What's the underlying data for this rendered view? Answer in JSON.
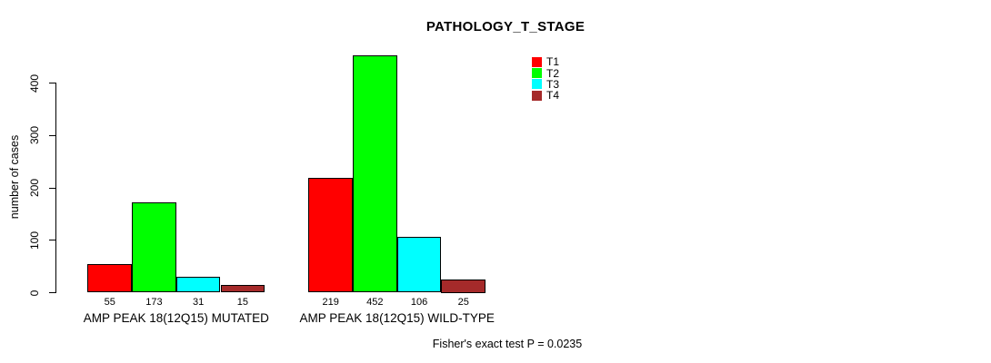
{
  "title": "PATHOLOGY_T_STAGE",
  "y_axis": {
    "label": "number of cases",
    "ticks": [
      0,
      100,
      200,
      300,
      400
    ]
  },
  "footnote": "Fisher's exact test P = 0.0235",
  "legend": {
    "items": [
      {
        "label": "T1",
        "color": "#FF0000"
      },
      {
        "label": "T2",
        "color": "#00FF00"
      },
      {
        "label": "T3",
        "color": "#00FFFF"
      },
      {
        "label": "T4",
        "color": "#A52A2A"
      }
    ]
  },
  "chart_data": {
    "type": "bar",
    "title": "PATHOLOGY_T_STAGE",
    "xlabel": "",
    "ylabel": "number of cases",
    "ylim": [
      0,
      465
    ],
    "yticks": [
      0,
      100,
      200,
      300,
      400
    ],
    "grid": false,
    "legend_position": "top-right",
    "bar_borders": "#000000",
    "categories": [
      "AMP PEAK 18(12Q15) MUTATED",
      "AMP PEAK 18(12Q15) WILD-TYPE"
    ],
    "series": [
      {
        "name": "T1",
        "color": "#FF0000",
        "values": [
          55,
          219
        ]
      },
      {
        "name": "T2",
        "color": "#00FF00",
        "values": [
          173,
          452
        ]
      },
      {
        "name": "T3",
        "color": "#00FFFF",
        "values": [
          31,
          106
        ]
      },
      {
        "name": "T4",
        "color": "#A52A2A",
        "values": [
          15,
          25
        ]
      }
    ],
    "annotation": "Fisher's exact test P = 0.0235"
  }
}
